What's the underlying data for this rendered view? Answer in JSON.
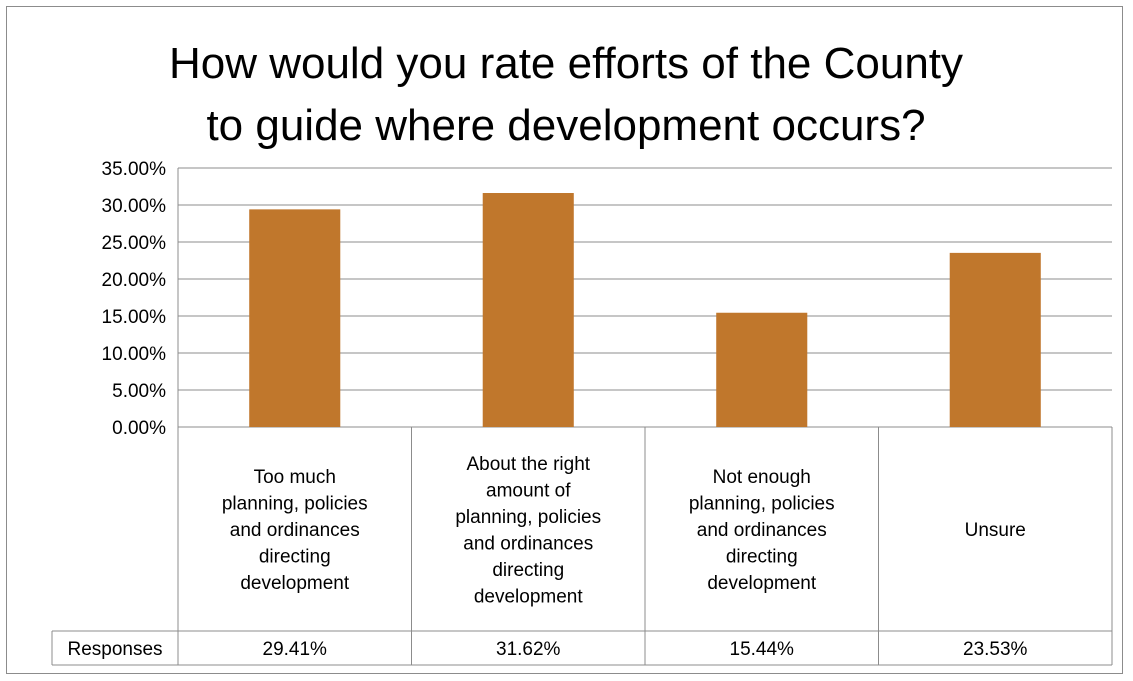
{
  "chart_data": {
    "type": "bar",
    "title_lines": [
      "How would you rate efforts of the County",
      "to guide where development occurs?"
    ],
    "categories": [
      [
        "Too much",
        "planning, policies",
        "and ordinances",
        "directing",
        "development"
      ],
      [
        "About the right",
        "amount of",
        "planning, policies",
        "and ordinances",
        "directing",
        "development"
      ],
      [
        "Not enough",
        "planning, policies",
        "and ordinances",
        "directing",
        "development"
      ],
      [
        "Unsure"
      ]
    ],
    "series": [
      {
        "name": "Responses",
        "values": [
          29.41,
          31.62,
          15.44,
          23.53
        ],
        "labels": [
          "29.41%",
          "31.62%",
          "15.44%",
          "23.53%"
        ],
        "color": "#c0772c"
      }
    ],
    "yticks": [
      "0.00%",
      "5.00%",
      "10.00%",
      "15.00%",
      "20.00%",
      "25.00%",
      "30.00%",
      "35.00%"
    ],
    "ylim": [
      0,
      35
    ],
    "grid": true,
    "data_table": true,
    "colors": {
      "bar": "#c0772c",
      "grid": "#8c8c8c",
      "text": "#000000"
    }
  }
}
